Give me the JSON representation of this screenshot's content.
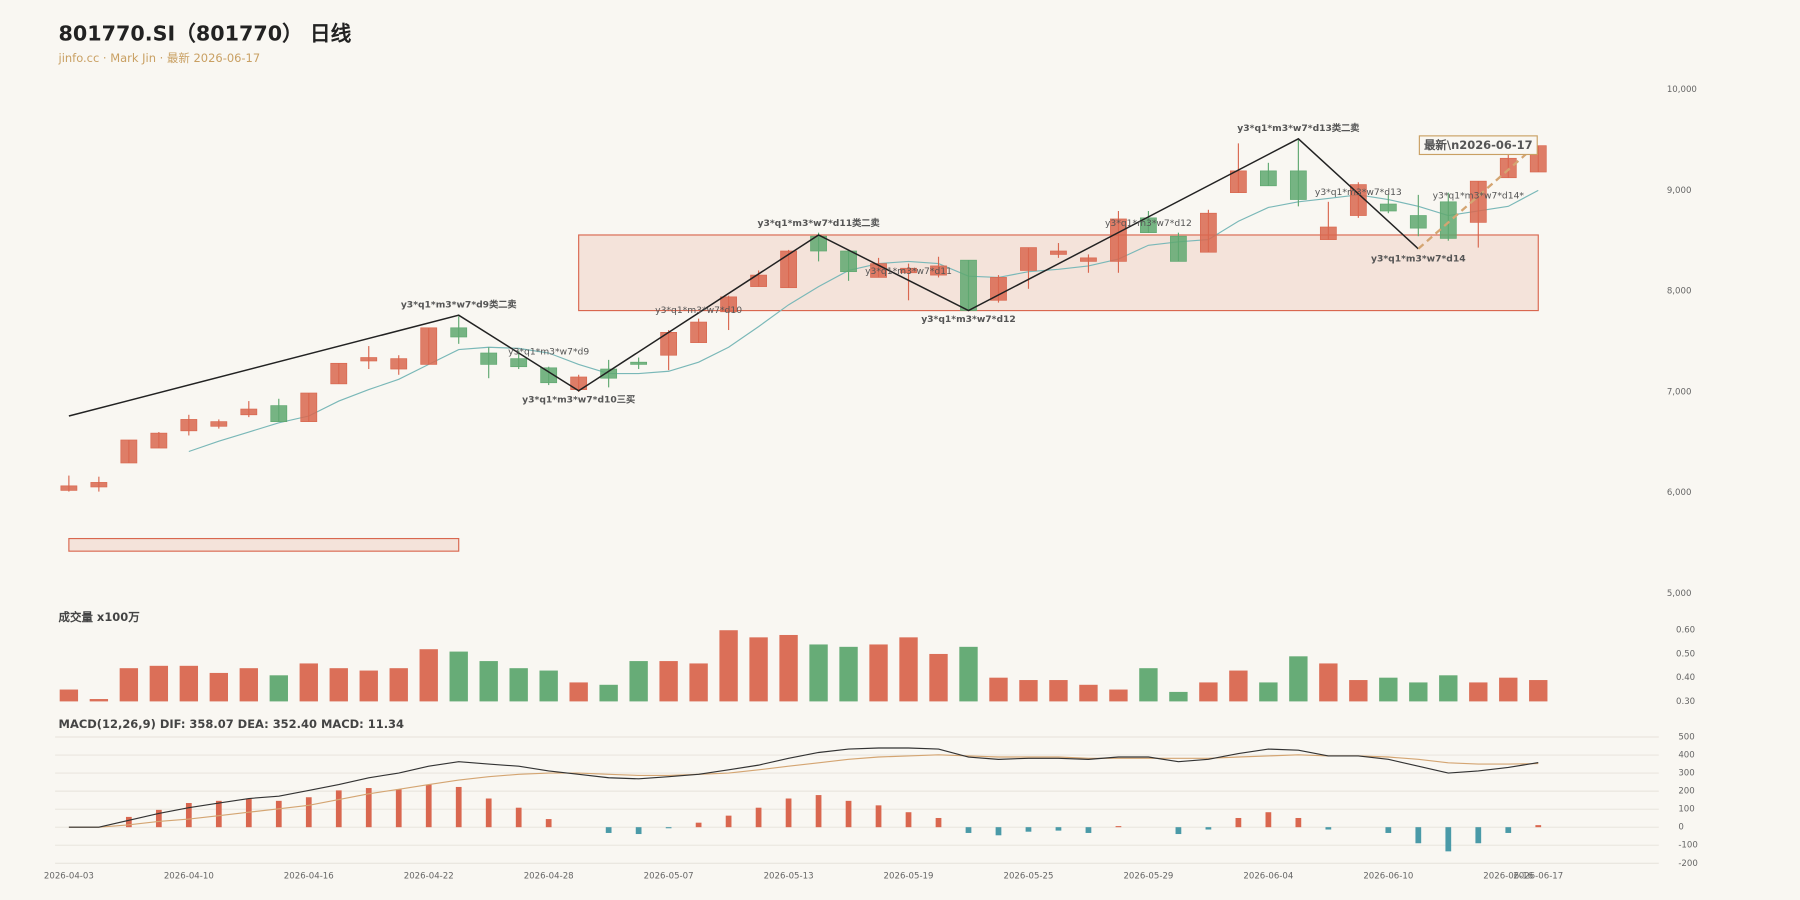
{
  "title": "801770.SI（801770） 日线",
  "subtitle": "jinfo.cc · Mark Jin · 最新 2026-06-17",
  "chart_data": [
    {
      "type": "candlestick",
      "categories": [
        "2026-04-03",
        null,
        null,
        null,
        "2026-04-10",
        null,
        null,
        null,
        "2026-04-16",
        null,
        null,
        null,
        "2026-04-22",
        null,
        null,
        null,
        "2026-04-28",
        null,
        null,
        null,
        "2026-05-07",
        null,
        null,
        null,
        "2026-05-13",
        null,
        null,
        null,
        "2026-05-19",
        null,
        null,
        null,
        "2026-05-25",
        null,
        null,
        null,
        "2026-05-29",
        null,
        null,
        null,
        "2026-06-04",
        null,
        null,
        null,
        "2026-06-10",
        null,
        null,
        null,
        "2026-06-16",
        "2026-06-17"
      ],
      "open": [
        6023,
        6057,
        6295,
        6443,
        6614,
        6659,
        6773,
        6864,
        6705,
        7080,
        7307,
        7227,
        7273,
        7636,
        7386,
        7330,
        7239,
        7023,
        7227,
        7295,
        7364,
        7489,
        7795,
        8045,
        8034,
        8545,
        8398,
        8136,
        8182,
        8159,
        8307,
        7909,
        8205,
        8364,
        8295,
        8295,
        8727,
        8545,
        8386,
        8977,
        9193,
        9193,
        8511,
        8750,
        8864,
        8750,
        8886,
        8682,
        9125,
        9182
      ],
      "high": [
        6170,
        6159,
        6523,
        6602,
        6773,
        6727,
        6909,
        6932,
        6989,
        7284,
        7455,
        7364,
        7636,
        7750,
        7443,
        7409,
        7250,
        7170,
        7318,
        7341,
        7614,
        7727,
        7955,
        8205,
        8409,
        8580,
        8409,
        8330,
        8273,
        8341,
        8307,
        8159,
        8432,
        8477,
        8364,
        8795,
        8795,
        8580,
        8807,
        9466,
        9273,
        9500,
        8886,
        9080,
        8955,
        8955,
        8977,
        9091,
        9386,
        9443
      ],
      "low": [
        6011,
        6011,
        6295,
        6443,
        6568,
        6636,
        6750,
        6705,
        6705,
        7080,
        7227,
        7170,
        7273,
        7477,
        7136,
        7227,
        7068,
        7000,
        7045,
        7227,
        7216,
        7489,
        7614,
        8045,
        8034,
        8295,
        8102,
        8136,
        7909,
        8136,
        7807,
        7886,
        8023,
        8330,
        8182,
        8182,
        8580,
        8295,
        8386,
        8977,
        9045,
        8841,
        8511,
        8727,
        8773,
        8545,
        8500,
        8432,
        9125,
        9182
      ],
      "close": [
        6068,
        6102,
        6523,
        6591,
        6727,
        6705,
        6830,
        6705,
        6989,
        7284,
        7341,
        7330,
        7636,
        7545,
        7273,
        7250,
        7091,
        7148,
        7136,
        7273,
        7591,
        7693,
        7943,
        8159,
        8398,
        8398,
        8193,
        8273,
        8227,
        8250,
        7807,
        8136,
        8432,
        8398,
        8330,
        8716,
        8580,
        8295,
        8773,
        9193,
        9045,
        8909,
        8636,
        9057,
        8795,
        8625,
        8523,
        9091,
        9318,
        9443
      ],
      "up_color": "#d9674f",
      "down_color": "#5fa870",
      "ylim": [
        5000,
        10000
      ],
      "yticks": [
        {
          "value": 5000,
          "label": "5,000"
        },
        {
          "value": 6000,
          "label": "6,000"
        },
        {
          "value": 7000,
          "label": "7,000"
        },
        {
          "value": 8000,
          "label": "8,000"
        },
        {
          "value": 9000,
          "label": "9,000"
        },
        {
          "value": 10000,
          "label": "10,000"
        }
      ],
      "ma": {
        "color": "#7ab8b8",
        "values": [
          null,
          null,
          null,
          null,
          6409,
          6511,
          6602,
          6693,
          6761,
          6909,
          7023,
          7125,
          7273,
          7420,
          7443,
          7432,
          7386,
          7273,
          7182,
          7182,
          7205,
          7295,
          7443,
          7648,
          7864,
          8045,
          8205,
          8273,
          8295,
          8273,
          8148,
          8136,
          8193,
          8216,
          8250,
          8318,
          8455,
          8489,
          8511,
          8693,
          8830,
          8886,
          8920,
          8955,
          8909,
          8841,
          8750,
          8795,
          8841,
          9000
        ]
      },
      "strokes": {
        "color": "#222222",
        "x": [
          0,
          13,
          17,
          25,
          30,
          41,
          45
        ],
        "values": [
          6761,
          7761,
          7011,
          8557,
          7807,
          9511,
          8420
        ]
      },
      "extension": {
        "color": "#d4a572",
        "dashed": true,
        "x": [
          45,
          49
        ],
        "values": [
          8420,
          9466
        ]
      },
      "zones": [
        {
          "from": 17,
          "to": 49,
          "high": 8557,
          "low": 7807,
          "color": "#d9674f"
        },
        {
          "from": 0,
          "to": 13,
          "high": 5545,
          "low": 5420,
          "color": "#d9674f"
        }
      ],
      "annotations": [
        {
          "text": "y3*q1*m3*w7*d9类二卖",
          "index": 13,
          "value": 7864,
          "style": "major"
        },
        {
          "text": "y3*q1*m3*w7*d9",
          "index": 16,
          "value": 7398,
          "style": "minor"
        },
        {
          "text": "y3*q1*m3*w7*d10三买",
          "index": 17,
          "value": 6920,
          "style": "major"
        },
        {
          "text": "y3*q1*m3*w7*d10",
          "index": 21,
          "value": 7807,
          "style": "minor"
        },
        {
          "text": "y3*q1*m3*w7*d11类二卖",
          "index": 25,
          "value": 8670,
          "style": "major"
        },
        {
          "text": "y3*q1*m3*w7*d11",
          "index": 28,
          "value": 8193,
          "style": "minor"
        },
        {
          "text": "y3*q1*m3*w7*d12",
          "index": 30,
          "value": 7716,
          "style": "major"
        },
        {
          "text": "y3*q1*m3*w7*d12",
          "index": 36,
          "value": 8670,
          "style": "minor"
        },
        {
          "text": "y3*q1*m3*w7*d13类二卖",
          "index": 41,
          "value": 9614,
          "style": "major"
        },
        {
          "text": "y3*q1*m3*w7*d13",
          "index": 43,
          "value": 8977,
          "style": "minor"
        },
        {
          "text": "y3*q1*m3*w7*d14",
          "index": 45,
          "value": 8318,
          "style": "major"
        },
        {
          "text": "y3*q1*m3*w7*d14*",
          "index": 47,
          "value": 8943,
          "style": "faint"
        },
        {
          "text": "最新\\n2026-06-17",
          "index": 47,
          "value": 9443,
          "style": "box"
        }
      ]
    },
    {
      "type": "bar",
      "title": "成交量 x100万",
      "values": [
        0.35,
        0.31,
        0.44,
        0.45,
        0.45,
        0.42,
        0.44,
        0.41,
        0.46,
        0.44,
        0.43,
        0.44,
        0.52,
        0.51,
        0.47,
        0.44,
        0.43,
        0.38,
        0.37,
        0.47,
        0.47,
        0.46,
        0.6,
        0.57,
        0.58,
        0.54,
        0.53,
        0.54,
        0.57,
        0.5,
        0.53,
        0.4,
        0.39,
        0.39,
        0.37,
        0.35,
        0.44,
        0.34,
        0.38,
        0.43,
        0.38,
        0.49,
        0.46,
        0.39,
        0.4,
        0.38,
        0.41,
        0.38,
        0.4,
        0.39
      ],
      "up_color": "#d9674f",
      "down_color": "#5fa870",
      "ylim": [
        0.3,
        0.6
      ],
      "yticks": [
        {
          "value": 0.3,
          "label": "0.30"
        },
        {
          "value": 0.4,
          "label": "0.40"
        },
        {
          "value": 0.5,
          "label": "0.50"
        },
        {
          "value": 0.6,
          "label": "0.60"
        }
      ]
    },
    {
      "type": "macd",
      "title": "MACD(12,26,9) DIF: 358.07 DEA: 352.40 MACD: 11.34",
      "dif": {
        "color": "#333333",
        "values": [
          0,
          0,
          38,
          76,
          108,
          134,
          159,
          172,
          204,
          236,
          274,
          300,
          338,
          363,
          350,
          338,
          312,
          293,
          274,
          268,
          280,
          293,
          318,
          344,
          382,
          414,
          433,
          439,
          439,
          433,
          389,
          376,
          382,
          382,
          376,
          389,
          389,
          363,
          376,
          408,
          433,
          427,
          395,
          395,
          376,
          338,
          300,
          312,
          331,
          358.07
        ]
      },
      "dea": {
        "color": "#d4a572",
        "values": [
          0,
          0,
          13,
          32,
          45,
          64,
          83,
          102,
          121,
          153,
          185,
          210,
          236,
          261,
          280,
          293,
          300,
          300,
          293,
          287,
          287,
          293,
          300,
          318,
          338,
          357,
          376,
          389,
          395,
          401,
          395,
          389,
          389,
          389,
          382,
          382,
          382,
          382,
          382,
          389,
          395,
          401,
          395,
          395,
          389,
          376,
          357,
          350,
          350,
          352.4
        ]
      },
      "hist": {
        "pos_color": "#d9674f",
        "neg_color": "#4a9aa8",
        "values": [
          0,
          0,
          57,
          96,
          134,
          146,
          159,
          146,
          166,
          204,
          217,
          210,
          236,
          223,
          159,
          108,
          45,
          0,
          -32,
          -38,
          -6,
          25,
          64,
          108,
          159,
          178,
          146,
          121,
          83,
          51,
          -32,
          -45,
          -25,
          -19,
          -32,
          6,
          0,
          -38,
          -13,
          51,
          83,
          51,
          -13,
          0,
          -32,
          -89,
          -134,
          -89,
          -32,
          11.34
        ]
      },
      "ylim": [
        -200,
        500
      ],
      "yticks": [
        -200,
        -100,
        0,
        100,
        200,
        300,
        400,
        500
      ],
      "grid": true
    }
  ]
}
